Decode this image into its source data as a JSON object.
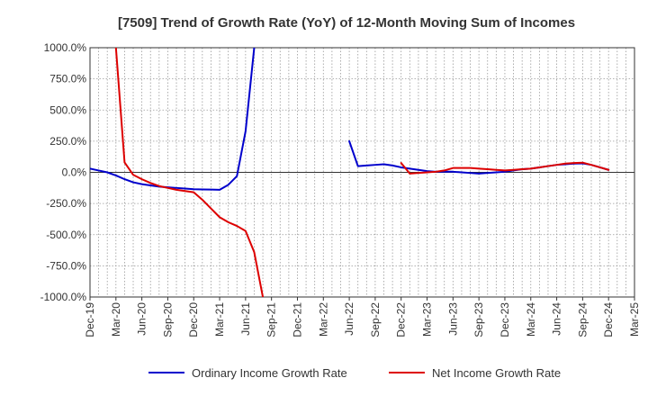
{
  "chart_data": {
    "type": "line",
    "title": "[7509]  Trend of Growth Rate (YoY) of 12-Month Moving Sum of Incomes",
    "xlabel": "",
    "ylabel": "",
    "ylim": [
      -1000,
      1000
    ],
    "yticks": [
      1000,
      750,
      500,
      250,
      0,
      -250,
      -500,
      -750,
      -1000
    ],
    "ytick_labels": [
      "1000.0%",
      "750.0%",
      "500.0%",
      "250.0%",
      "0.0%",
      "-250.0%",
      "-500.0%",
      "-750.0%",
      "-1000.0%"
    ],
    "x_tick_labels": [
      "Dec-19",
      "Mar-20",
      "Jun-20",
      "Sep-20",
      "Dec-20",
      "Mar-21",
      "Jun-21",
      "Sep-21",
      "Dec-21",
      "Mar-22",
      "Jun-22",
      "Sep-22",
      "Dec-22",
      "Mar-23",
      "Jun-23",
      "Sep-23",
      "Dec-23",
      "Mar-24",
      "Jun-24",
      "Sep-24",
      "Dec-24",
      "Mar-25"
    ],
    "x": [
      "Dec-19",
      "Jan-20",
      "Feb-20",
      "Mar-20",
      "Apr-20",
      "May-20",
      "Jun-20",
      "Jul-20",
      "Aug-20",
      "Sep-20",
      "Oct-20",
      "Nov-20",
      "Dec-20",
      "Jan-21",
      "Feb-21",
      "Mar-21",
      "Apr-21",
      "May-21",
      "Jun-21",
      "Jul-21",
      "Aug-21",
      "Sep-21",
      "Oct-21",
      "Nov-21",
      "Dec-21",
      "Jan-22",
      "Feb-22",
      "Mar-22",
      "Apr-22",
      "May-22",
      "Jun-22",
      "Jul-22",
      "Aug-22",
      "Sep-22",
      "Oct-22",
      "Nov-22",
      "Dec-22",
      "Jan-23",
      "Feb-23",
      "Mar-23",
      "Apr-23",
      "May-23",
      "Jun-23",
      "Jul-23",
      "Aug-23",
      "Sep-23",
      "Oct-23",
      "Nov-23",
      "Dec-23",
      "Jan-24",
      "Feb-24",
      "Mar-24",
      "Apr-24",
      "May-24",
      "Jun-24",
      "Jul-24",
      "Aug-24",
      "Sep-24",
      "Oct-24",
      "Nov-24",
      "Dec-24",
      "Jan-25",
      "Feb-25",
      "Mar-25"
    ],
    "grid": true,
    "legend_position": "bottom",
    "series": [
      {
        "name": "Ordinary Income Growth Rate",
        "color": "#0000cc",
        "values": [
          30,
          15,
          0,
          -25,
          -55,
          -80,
          -95,
          -105,
          -115,
          -120,
          -125,
          -130,
          -135,
          -137,
          -138,
          -140,
          -100,
          -30,
          330,
          1000,
          null,
          null,
          null,
          null,
          null,
          null,
          null,
          null,
          null,
          null,
          250,
          50,
          55,
          60,
          65,
          55,
          40,
          30,
          20,
          10,
          5,
          5,
          5,
          0,
          -5,
          -10,
          -5,
          0,
          5,
          15,
          25,
          30,
          40,
          50,
          60,
          65,
          70,
          72,
          60,
          40,
          20,
          null,
          null,
          null
        ]
      },
      {
        "name": "Net Income Growth Rate",
        "color": "#dd0000",
        "values": [
          null,
          null,
          null,
          1000,
          80,
          -20,
          -55,
          -85,
          -110,
          -125,
          -140,
          -150,
          -160,
          -220,
          -290,
          -360,
          -400,
          -430,
          -470,
          -640,
          -1000,
          null,
          null,
          null,
          null,
          null,
          null,
          null,
          null,
          null,
          null,
          null,
          null,
          null,
          null,
          null,
          75,
          -10,
          -5,
          0,
          5,
          15,
          35,
          35,
          35,
          30,
          25,
          20,
          15,
          20,
          25,
          30,
          40,
          50,
          60,
          70,
          75,
          78,
          60,
          40,
          20,
          null,
          null,
          null
        ]
      }
    ]
  }
}
